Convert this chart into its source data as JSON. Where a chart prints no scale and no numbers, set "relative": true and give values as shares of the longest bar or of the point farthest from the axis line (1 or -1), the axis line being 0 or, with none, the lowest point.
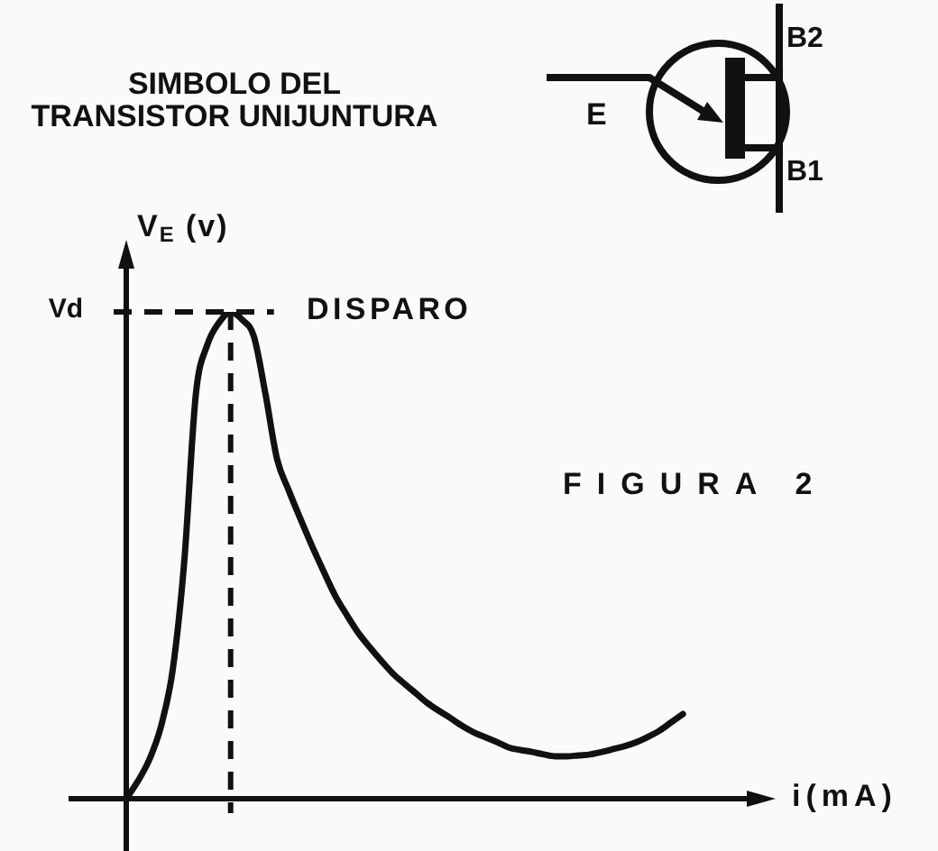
{
  "chart_data": {
    "type": "line",
    "title": "FIGURA 2",
    "xlabel": "i(mA)",
    "ylabel": "V$_{E}$ (v)",
    "relative": true,
    "categories": [
      null,
      null,
      null,
      null,
      null,
      null,
      null,
      null,
      null,
      null,
      null,
      null,
      null,
      null,
      null,
      null,
      null,
      null,
      null,
      null,
      null,
      null,
      null,
      null,
      null,
      null,
      null,
      null,
      null,
      null,
      null,
      null,
      null,
      null,
      null,
      null,
      null,
      null,
      null,
      null,
      null,
      null,
      null,
      null,
      null,
      null,
      null,
      null,
      null,
      null,
      null,
      null,
      null,
      null,
      null,
      null,
      null
    ],
    "series": [
      {
        "color": "#111111",
        "values": [
          0,
          0.036,
          0.081,
          0.149,
          0.264,
          0.487,
          0.831,
          0.933,
          0.978,
          1,
          0.984,
          0.95,
          0.832,
          0.698,
          0.634,
          0.576,
          0.52,
          0.468,
          0.418,
          0.378,
          0.341,
          0.311,
          0.283,
          0.257,
          0.236,
          0.216,
          0.196,
          0.18,
          0.165,
          0.149,
          0.136,
          0.126,
          0.116,
          0.105,
          0.1,
          0.096,
          0.091,
          0.087,
          0.087,
          0.089,
          0.091,
          0.096,
          0.102,
          0.108,
          0.116,
          0.127,
          0.14,
          0.157,
          0.174,
          null,
          null,
          null,
          null,
          null,
          null,
          null,
          null
        ]
      }
    ],
    "marker": "none",
    "line_style": "solid",
    "ref_lines": [
      {
        "axis": "y",
        "value": 1,
        "label": "Vd",
        "line_style": "dashed",
        "color": "#111111"
      }
    ],
    "annotations": [
      "SIMBOLO DEL\nTRANSISTOR UNIJUNTURA",
      "E",
      "B2",
      "B1",
      "DISPARO"
    ]
  }
}
